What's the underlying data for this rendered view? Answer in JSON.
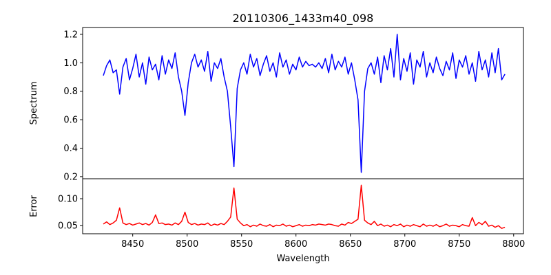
{
  "chart_data": [
    {
      "type": "line",
      "title": "20110306_1433m40_098",
      "xlabel": "",
      "ylabel": "Spectrum",
      "xlim": [
        8404,
        8809
      ],
      "ylim": [
        0.185,
        1.248
      ],
      "yticks": [
        0.2,
        0.4,
        0.6,
        0.8,
        1.0,
        1.2
      ],
      "ytick_labels": [
        "0.2",
        "0.4",
        "0.6",
        "0.8",
        "1.0",
        "1.2"
      ],
      "grid": false,
      "color": "#0000ff",
      "x_start": 8423,
      "x_step": 3,
      "values": [
        0.91,
        0.98,
        1.02,
        0.93,
        0.95,
        0.78,
        0.97,
        1.03,
        0.88,
        0.96,
        1.06,
        0.9,
        1.0,
        0.85,
        1.04,
        0.95,
        0.99,
        0.88,
        1.05,
        0.92,
        1.02,
        0.96,
        1.07,
        0.9,
        0.8,
        0.63,
        0.86,
        1.0,
        1.06,
        0.97,
        1.02,
        0.94,
        1.08,
        0.87,
        1.0,
        0.96,
        1.03,
        0.9,
        0.8,
        0.55,
        0.27,
        0.82,
        0.95,
        1.0,
        0.92,
        1.06,
        0.97,
        1.03,
        0.91,
        0.99,
        1.05,
        0.94,
        1.0,
        0.9,
        1.07,
        0.97,
        1.02,
        0.92,
        0.99,
        0.95,
        1.04,
        0.97,
        1.01,
        0.98,
        0.99,
        0.97,
        1.0,
        0.96,
        1.03,
        0.93,
        1.06,
        0.95,
        1.01,
        0.97,
        1.04,
        0.92,
        1.0,
        0.88,
        0.74,
        0.23,
        0.8,
        0.96,
        1.0,
        0.92,
        1.04,
        0.86,
        1.05,
        0.95,
        1.1,
        0.9,
        1.2,
        0.88,
        1.03,
        0.94,
        1.07,
        0.85,
        1.02,
        0.97,
        1.08,
        0.9,
        1.0,
        0.93,
        1.04,
        0.96,
        0.91,
        1.01,
        0.95,
        1.07,
        0.89,
        1.02,
        0.97,
        1.05,
        0.92,
        1.0,
        0.87,
        1.08,
        0.95,
        1.02,
        0.9,
        1.07,
        0.93,
        1.1,
        0.88,
        0.92
      ]
    },
    {
      "type": "line",
      "xlabel": "Wavelength",
      "ylabel": "Error",
      "xlim": [
        8404,
        8809
      ],
      "ylim": [
        0.035,
        0.137
      ],
      "xticks": [
        8450,
        8500,
        8550,
        8600,
        8650,
        8700,
        8750,
        8800
      ],
      "xtick_labels": [
        "8450",
        "8500",
        "8550",
        "8600",
        "8650",
        "8700",
        "8750",
        "8800"
      ],
      "yticks": [
        0.05,
        0.1
      ],
      "ytick_labels": [
        "0.05",
        "0.10"
      ],
      "grid": false,
      "color": "#ff0000",
      "x_start": 8423,
      "x_step": 3,
      "values": [
        0.053,
        0.057,
        0.052,
        0.055,
        0.06,
        0.083,
        0.055,
        0.052,
        0.054,
        0.051,
        0.053,
        0.055,
        0.052,
        0.054,
        0.051,
        0.056,
        0.07,
        0.054,
        0.055,
        0.052,
        0.053,
        0.051,
        0.055,
        0.052,
        0.058,
        0.075,
        0.056,
        0.052,
        0.054,
        0.051,
        0.053,
        0.052,
        0.055,
        0.05,
        0.053,
        0.051,
        0.054,
        0.052,
        0.058,
        0.066,
        0.12,
        0.062,
        0.055,
        0.05,
        0.052,
        0.048,
        0.051,
        0.049,
        0.053,
        0.05,
        0.049,
        0.052,
        0.048,
        0.051,
        0.05,
        0.053,
        0.049,
        0.051,
        0.048,
        0.05,
        0.052,
        0.049,
        0.051,
        0.05,
        0.052,
        0.051,
        0.053,
        0.052,
        0.051,
        0.053,
        0.052,
        0.05,
        0.049,
        0.053,
        0.051,
        0.056,
        0.054,
        0.058,
        0.062,
        0.125,
        0.06,
        0.055,
        0.052,
        0.058,
        0.05,
        0.053,
        0.049,
        0.051,
        0.048,
        0.052,
        0.05,
        0.053,
        0.048,
        0.051,
        0.049,
        0.052,
        0.05,
        0.048,
        0.053,
        0.049,
        0.051,
        0.049,
        0.052,
        0.048,
        0.05,
        0.053,
        0.049,
        0.051,
        0.05,
        0.048,
        0.052,
        0.05,
        0.049,
        0.065,
        0.05,
        0.056,
        0.052,
        0.058,
        0.049,
        0.051,
        0.047,
        0.05,
        0.045,
        0.047
      ]
    }
  ]
}
